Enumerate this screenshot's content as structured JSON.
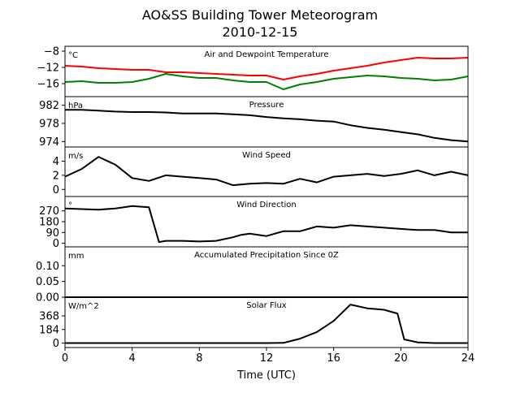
{
  "chart_data": {
    "type": "line",
    "title": "AO&SS Building Tower Meteorogram",
    "subtitle": "2010-12-15",
    "xlabel": "Time (UTC)",
    "xlim": [
      0,
      24
    ],
    "xticks": [
      0,
      4,
      8,
      12,
      16,
      20,
      24
    ],
    "grid": false,
    "panels": [
      {
        "id": "temperature",
        "title": "Air and Dewpoint Temperature",
        "unit": "°C",
        "ylim": [
          -19.2,
          -6.8
        ],
        "yticks": [
          -8,
          -12,
          -16
        ],
        "ytick_labels": [
          "−8",
          "−12",
          "−16"
        ],
        "series": [
          {
            "color": "#ff0000",
            "x": [
              0,
              1,
              2,
              3,
              4,
              5,
              6,
              7,
              8,
              9,
              10,
              11,
              12,
              13,
              14,
              15,
              16,
              17,
              18,
              19,
              20,
              21,
              22,
              23,
              24
            ],
            "values": [
              -11.6,
              -11.8,
              -12.2,
              -12.4,
              -12.6,
              -12.6,
              -13.2,
              -13.2,
              -13.4,
              -13.6,
              -13.8,
              -14.0,
              -14.0,
              -15.0,
              -14.2,
              -13.6,
              -12.8,
              -12.2,
              -11.6,
              -10.8,
              -10.2,
              -9.6,
              -9.8,
              -9.8,
              -9.6
            ]
          },
          {
            "color": "#008000",
            "x": [
              0,
              1,
              2,
              3,
              4,
              5,
              6,
              7,
              8,
              9,
              10,
              11,
              12,
              13,
              14,
              15,
              16,
              17,
              18,
              19,
              20,
              21,
              22,
              23,
              24
            ],
            "values": [
              -15.6,
              -15.4,
              -15.8,
              -15.8,
              -15.6,
              -14.8,
              -13.6,
              -14.2,
              -14.6,
              -14.6,
              -15.2,
              -15.6,
              -15.6,
              -17.4,
              -16.2,
              -15.6,
              -14.8,
              -14.4,
              -14.0,
              -14.2,
              -14.6,
              -14.8,
              -15.2,
              -15.0,
              -14.2
            ]
          }
        ]
      },
      {
        "id": "pressure",
        "title": "Pressure",
        "unit": "hPa",
        "ylim": [
          972.8,
          983.9
        ],
        "yticks": [
          982,
          978,
          974
        ],
        "ytick_labels": [
          "982",
          "978",
          "974"
        ],
        "series": [
          {
            "color": "#000000",
            "x": [
              0,
              1,
              2,
              3,
              4,
              5,
              6,
              7,
              8,
              9,
              10,
              11,
              12,
              13,
              14,
              15,
              16,
              17,
              18,
              19,
              20,
              21,
              22,
              23,
              24
            ],
            "values": [
              981.0,
              981.0,
              980.8,
              980.6,
              980.5,
              980.5,
              980.4,
              980.2,
              980.2,
              980.2,
              980.0,
              979.8,
              979.4,
              979.1,
              978.9,
              978.6,
              978.4,
              977.6,
              977.0,
              976.6,
              976.1,
              975.6,
              974.8,
              974.3,
              974.0
            ]
          }
        ]
      },
      {
        "id": "wind_speed",
        "title": "Wind Speed",
        "unit": "m/s",
        "ylim": [
          -1.0,
          6.0
        ],
        "yticks": [
          4,
          2,
          0
        ],
        "ytick_labels": [
          "4",
          "2",
          "0"
        ],
        "series": [
          {
            "color": "#000000",
            "x": [
              0,
              1,
              2,
              3,
              4,
              5,
              6,
              7,
              8,
              9,
              10,
              11,
              12,
              13,
              14,
              15,
              16,
              17,
              18,
              19,
              20,
              21,
              22,
              23,
              24
            ],
            "values": [
              1.8,
              2.9,
              4.6,
              3.5,
              1.6,
              1.2,
              2.0,
              1.8,
              1.6,
              1.4,
              0.6,
              0.8,
              0.9,
              0.8,
              1.5,
              1.0,
              1.8,
              2.0,
              2.2,
              1.9,
              2.2,
              2.7,
              2.0,
              2.5,
              2.0
            ]
          }
        ]
      },
      {
        "id": "wind_direction",
        "title": "Wind Direction",
        "unit": "°",
        "ylim": [
          -30,
          390
        ],
        "yticks": [
          270,
          180,
          90,
          0
        ],
        "ytick_labels": [
          "270",
          "180",
          "90",
          "0"
        ],
        "series": [
          {
            "color": "#000000",
            "x": [
              0,
              1,
              2,
              3,
              4,
              5,
              5.6,
              6,
              7,
              8,
              9,
              10,
              10.5,
              11,
              12,
              13,
              14,
              15,
              16,
              17,
              18,
              19,
              20,
              21,
              22,
              23,
              24
            ],
            "values": [
              290,
              285,
              280,
              290,
              310,
              300,
              10,
              20,
              20,
              15,
              20,
              50,
              70,
              80,
              60,
              100,
              100,
              140,
              130,
              150,
              140,
              130,
              120,
              110,
              110,
              90,
              90
            ]
          }
        ]
      },
      {
        "id": "precipitation",
        "title": "Accumulated Precipitation Since 0Z",
        "unit": "mm",
        "ylim": [
          0,
          0.16
        ],
        "yticks": [
          0.1,
          0.05,
          0.0
        ],
        "ytick_labels": [
          "0.10",
          "0.05",
          "0.00"
        ],
        "series": [
          {
            "color": "#000000",
            "x": [
              0,
              24
            ],
            "values": [
              0,
              0
            ]
          }
        ]
      },
      {
        "id": "solar_flux",
        "title": "Solar Flux",
        "unit": "W/m^2",
        "ylim": [
          -60,
          620
        ],
        "yticks": [
          368,
          184,
          0
        ],
        "ytick_labels": [
          "368",
          "184",
          "0"
        ],
        "series": [
          {
            "color": "#000000",
            "x": [
              0,
              4,
              8,
              12,
              13,
              14,
              15,
              16,
              17,
              18,
              19,
              19.8,
              20.2,
              21,
              22,
              23,
              24
            ],
            "values": [
              0,
              0,
              0,
              0,
              2,
              60,
              150,
              300,
              520,
              470,
              450,
              400,
              50,
              10,
              0,
              0,
              0
            ]
          }
        ]
      }
    ]
  }
}
